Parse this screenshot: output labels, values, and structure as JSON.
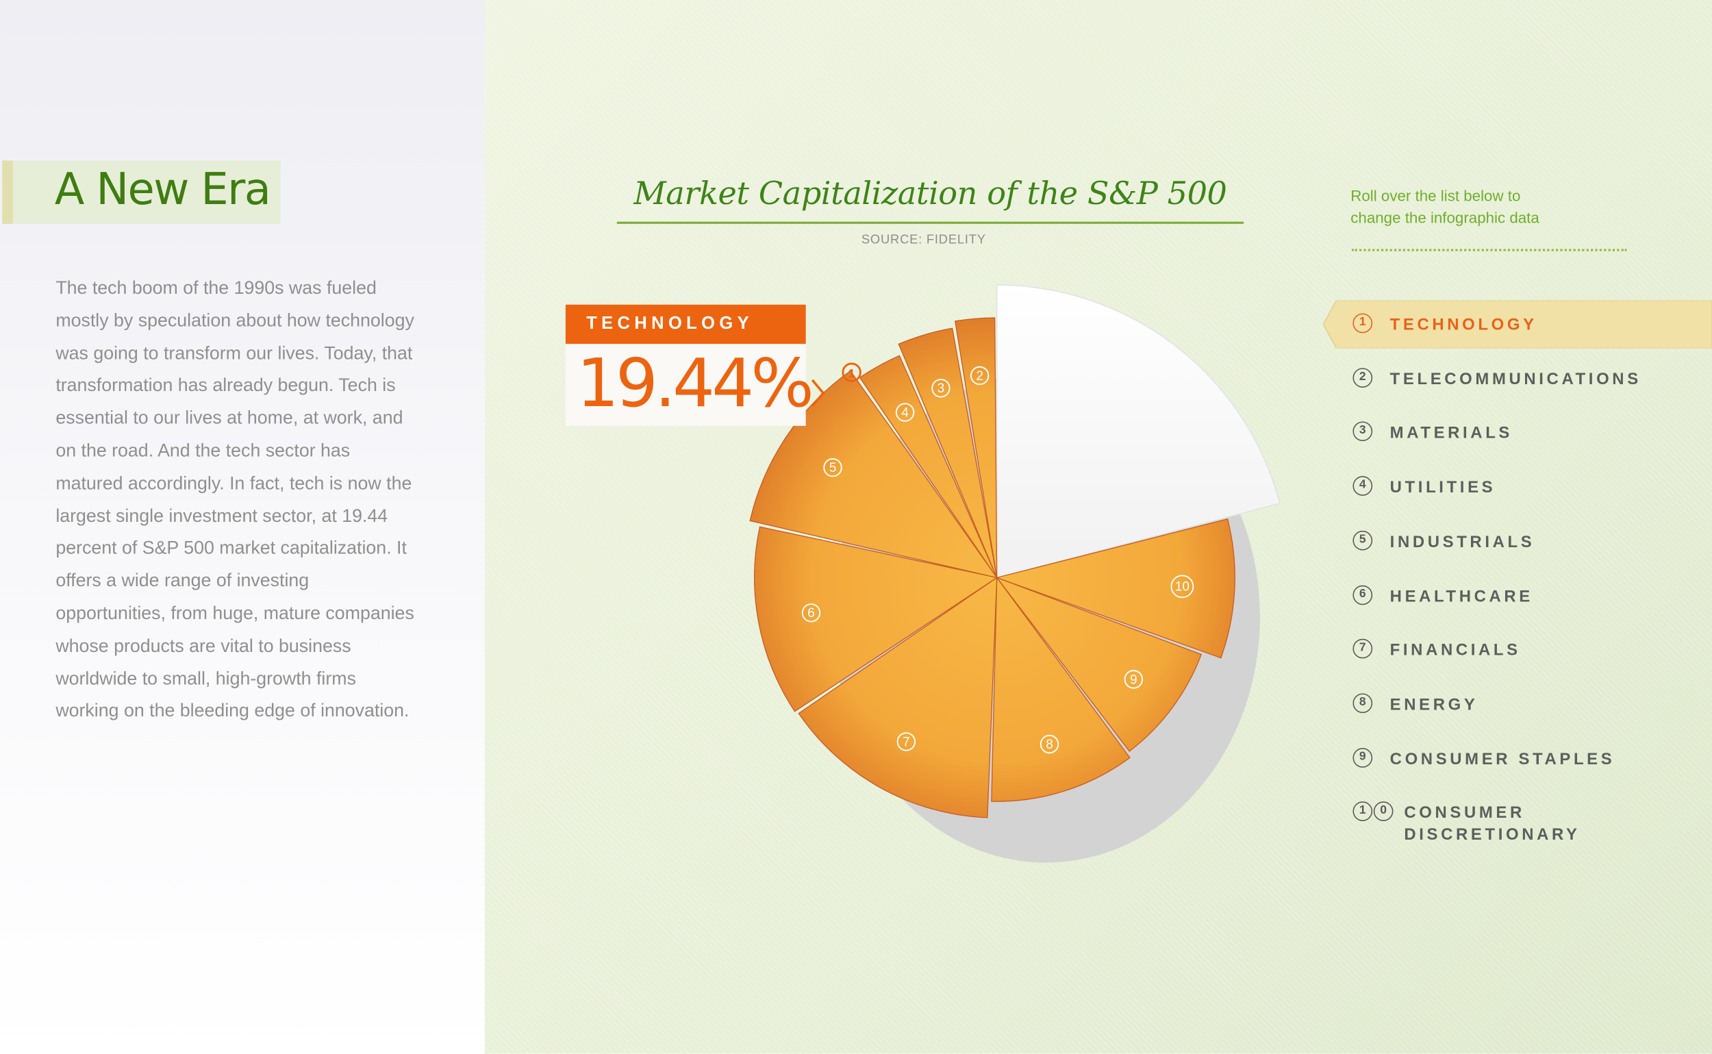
{
  "intro": {
    "title": "A New Era",
    "body": "The tech boom of the 1990s was fueled mostly by speculation about how technology was going to transform our lives. Today, that transformation has already begun. Tech is essential to our lives at home, at work, and on the road. And the tech sector has matured accordingly. In fact, tech is now the largest single investment sector, at 19.44 percent of S&P 500 market capitalization. It offers a wide range of investing opportunities, from huge, mature companies whose products are vital to business worldwide to small, high-growth firms working on the bleeding edge of innovation."
  },
  "hint": {
    "line1": "Roll over the list below to",
    "line2": "change the infographic data"
  },
  "colors": {
    "accent": "#ed6410",
    "green": "#3d8418",
    "slice": "#f3a83a",
    "selected": "#ffffff"
  },
  "callout": {
    "label": "TECHNOLOGY",
    "value": "19.44%",
    "number": "1"
  },
  "sectors": [
    {
      "num": "1",
      "label": "TECHNOLOGY",
      "active": true
    },
    {
      "num": "2",
      "label": "TELECOMMUNICATIONS",
      "active": false
    },
    {
      "num": "3",
      "label": "MATERIALS",
      "active": false
    },
    {
      "num": "4",
      "label": "UTILITIES",
      "active": false
    },
    {
      "num": "5",
      "label": "INDUSTRIALS",
      "active": false
    },
    {
      "num": "6",
      "label": "HEALTHCARE",
      "active": false
    },
    {
      "num": "7",
      "label": "FINANCIALS",
      "active": false
    },
    {
      "num": "8",
      "label": "ENERGY",
      "active": false
    },
    {
      "num": "9",
      "label": "CONSUMER STAPLES",
      "active": false
    },
    {
      "num": "10",
      "label": "CONSUMER DISCRETIONARY",
      "label_lines": [
        "CONSUMER",
        "DISCRETIONARY"
      ],
      "active": false
    }
  ],
  "chart_data": {
    "type": "pie",
    "title": "Market Capitalization of the S&P 500",
    "subtitle": "SOURCE: FIDELITY",
    "selected": "1",
    "slices": [
      {
        "num": "1",
        "value": 19.44
      },
      {
        "num": "10",
        "value": 9
      },
      {
        "num": "9",
        "value": 8.5
      },
      {
        "num": "8",
        "value": 10
      },
      {
        "num": "7",
        "value": 14
      },
      {
        "num": "6",
        "value": 12
      },
      {
        "num": "5",
        "value": 11
      },
      {
        "num": "4",
        "value": 3
      },
      {
        "num": "3",
        "value": 3.5
      },
      {
        "num": "2",
        "value": 2.5
      }
    ]
  }
}
